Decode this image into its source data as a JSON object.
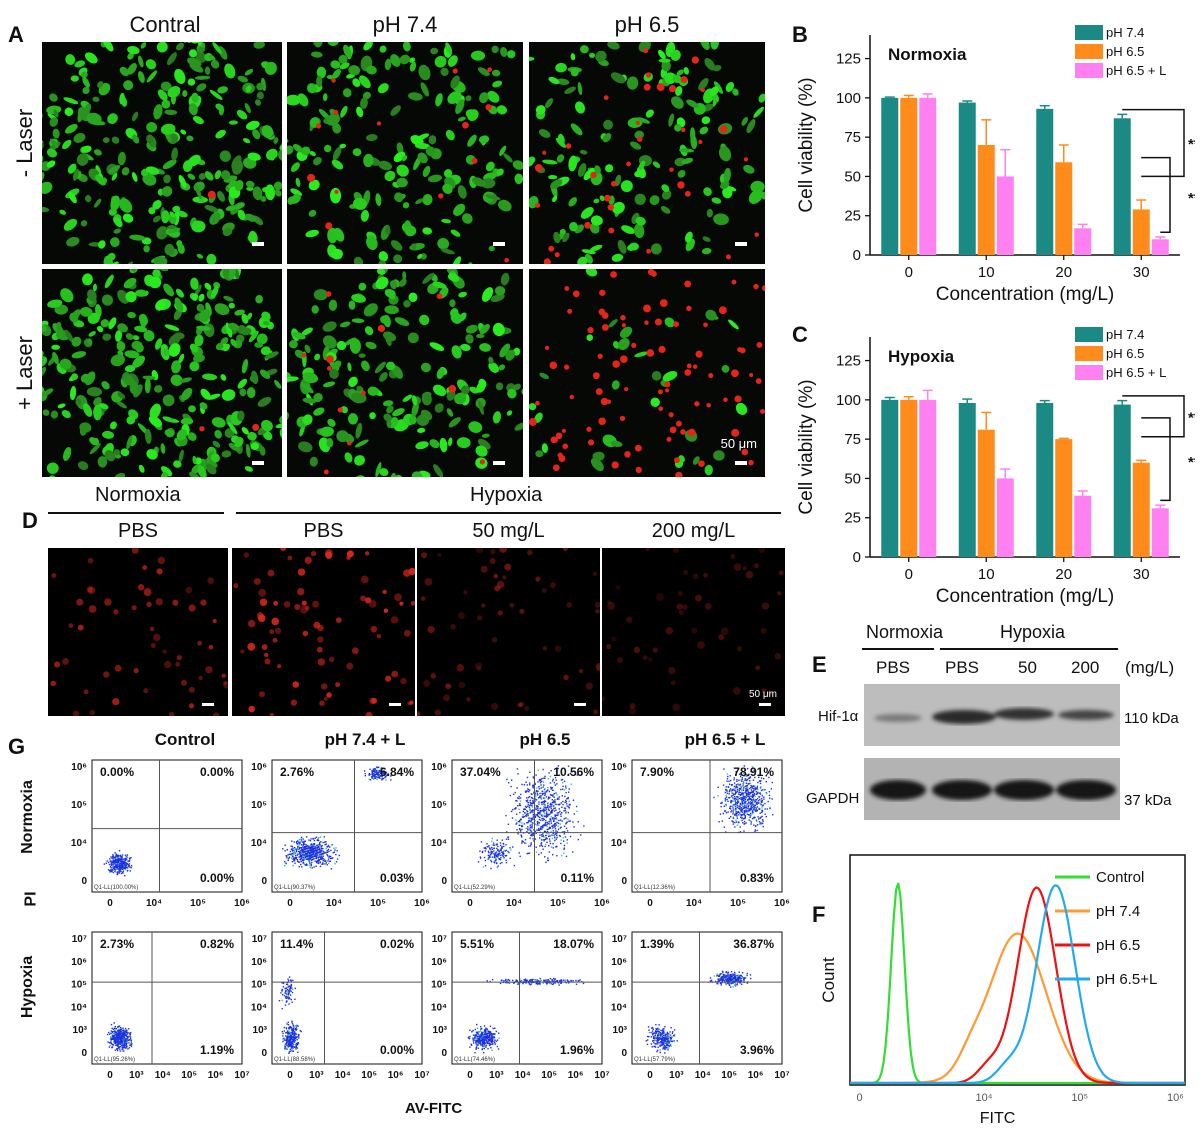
{
  "panelA": {
    "label": "A",
    "columns": [
      "Contral",
      "pH 7.4",
      "pH 6.5"
    ],
    "rows": [
      "- Laser",
      "+ Laser"
    ],
    "scalebar": "50 μm"
  },
  "panelD": {
    "label": "D",
    "group_labels": [
      "Normoxia",
      "Hypoxia"
    ],
    "columns": [
      "PBS",
      "PBS",
      "50 mg/L",
      "200 mg/L"
    ],
    "scalebar": "50 μm"
  },
  "panelE": {
    "label": "E",
    "group_labels": [
      "Normoxia",
      "Hypoxia"
    ],
    "lanes": [
      "PBS",
      "PBS",
      "50",
      "200"
    ],
    "unit": "(mg/L)",
    "proteins": [
      "Hif-1α",
      "GAPDH"
    ],
    "sizes": [
      "110 kDa",
      "37 kDa"
    ]
  },
  "panelG": {
    "label": "G",
    "columns": [
      "Control",
      "pH 7.4 + L",
      "pH 6.5",
      "pH 6.5 + L"
    ],
    "rows": [
      "Normoxia",
      "Hypoxia"
    ],
    "xlabel": "AV-FITC",
    "ylabel": "PI",
    "normoxia": [
      {
        "UL": "0.00%",
        "UR": "0.00%",
        "LR": "0.00%",
        "LL": "Q1-LL(100.00%)"
      },
      {
        "UL": "2.76%",
        "UR": "6.84%",
        "LR": "0.03%",
        "LL": "Q1-LL(90.37%)"
      },
      {
        "UL": "37.04%",
        "UR": "10.56%",
        "LR": "0.11%",
        "LL": "Q1-LL(52.29%)"
      },
      {
        "UL": "7.90%",
        "UR": "78.91%",
        "LR": "0.83%",
        "LL": "Q1-LL(12.36%)"
      }
    ],
    "hypoxia": [
      {
        "UL": "2.73%",
        "UR": "0.82%",
        "LR": "1.19%",
        "LL": "Q1-LL(95.26%)"
      },
      {
        "UL": "11.4%",
        "UR": "0.02%",
        "LR": "0.00%",
        "LL": "Q1-LL(88.58%)"
      },
      {
        "UL": "5.51%",
        "UR": "18.07%",
        "LR": "1.96%",
        "LL": "Q1-LL(74.46%)"
      },
      {
        "UL": "1.39%",
        "UR": "36.87%",
        "LR": "3.96%",
        "LL": "Q1-LL(57.79%)"
      }
    ],
    "x_ticks_normoxia": [
      "0",
      "10⁴",
      "10⁵",
      "10⁶"
    ],
    "y_ticks_normoxia": [
      "10⁶",
      "10⁵",
      "10⁴",
      "0"
    ],
    "x_ticks_hypoxia": [
      "0",
      "10³",
      "10⁴",
      "10⁵",
      "10⁶",
      "10⁷"
    ],
    "y_ticks_hypoxia": [
      "10⁷",
      "10⁶",
      "10⁵",
      "10⁴",
      "10³",
      "0"
    ]
  },
  "chart_data": [
    {
      "panel": "B",
      "type": "bar",
      "title": "Normoxia",
      "categories": [
        "0",
        "10",
        "20",
        "30"
      ],
      "xlabel": "Concentration (mg/L)",
      "ylabel": "Cell viability (%)",
      "ylim": [
        0,
        140
      ],
      "yticks": [
        0,
        25,
        50,
        75,
        100,
        125
      ],
      "series": [
        {
          "name": "pH 7.4",
          "color": "#1b8a84",
          "values": [
            100,
            97,
            93,
            87
          ],
          "errors": [
            0.5,
            1,
            2,
            2.5
          ]
        },
        {
          "name": "pH 6.5",
          "color": "#ff8c1a",
          "values": [
            100,
            70,
            59,
            29
          ],
          "errors": [
            1.5,
            16,
            11,
            6
          ]
        },
        {
          "name": "pH 6.5 + L",
          "color": "#ff80f0",
          "values": [
            100,
            50,
            17,
            10
          ],
          "errors": [
            2.5,
            17,
            2.5,
            1.5
          ]
        }
      ],
      "significance": [
        "***",
        "**"
      ]
    },
    {
      "panel": "C",
      "type": "bar",
      "title": "Hypoxia",
      "categories": [
        "0",
        "10",
        "20",
        "30"
      ],
      "xlabel": "Concentration (mg/L)",
      "ylabel": "Cell viability (%)",
      "ylim": [
        0,
        140
      ],
      "yticks": [
        0,
        25,
        50,
        75,
        100,
        125
      ],
      "series": [
        {
          "name": "pH 7.4",
          "color": "#1b8a84",
          "values": [
            100,
            98,
            98,
            97
          ],
          "errors": [
            1.5,
            2.5,
            1.5,
            2.5
          ]
        },
        {
          "name": "pH 6.5",
          "color": "#ff8c1a",
          "values": [
            100,
            81,
            75,
            60
          ],
          "errors": [
            2,
            11,
            0.5,
            1.5
          ]
        },
        {
          "name": "pH 6.5 + L",
          "color": "#ff80f0",
          "values": [
            100,
            50,
            39,
            31
          ],
          "errors": [
            6,
            6,
            3,
            2
          ]
        }
      ],
      "significance": [
        "**",
        "***"
      ]
    },
    {
      "panel": "F",
      "type": "line",
      "xlabel": "FITC",
      "ylabel": "Count",
      "xticks": [
        "0",
        "10⁴",
        "10⁵",
        "10⁶"
      ],
      "series": [
        {
          "name": "Control",
          "color": "#33dd33",
          "peak_log10": 3.1
        },
        {
          "name": "pH 7.4",
          "color": "#ff9933",
          "peak_log10": 4.35
        },
        {
          "name": "pH 6.5",
          "color": "#ee1111",
          "peak_log10": 4.55
        },
        {
          "name": "pH 6.5+L",
          "color": "#22aaee",
          "peak_log10": 4.75
        }
      ]
    }
  ]
}
